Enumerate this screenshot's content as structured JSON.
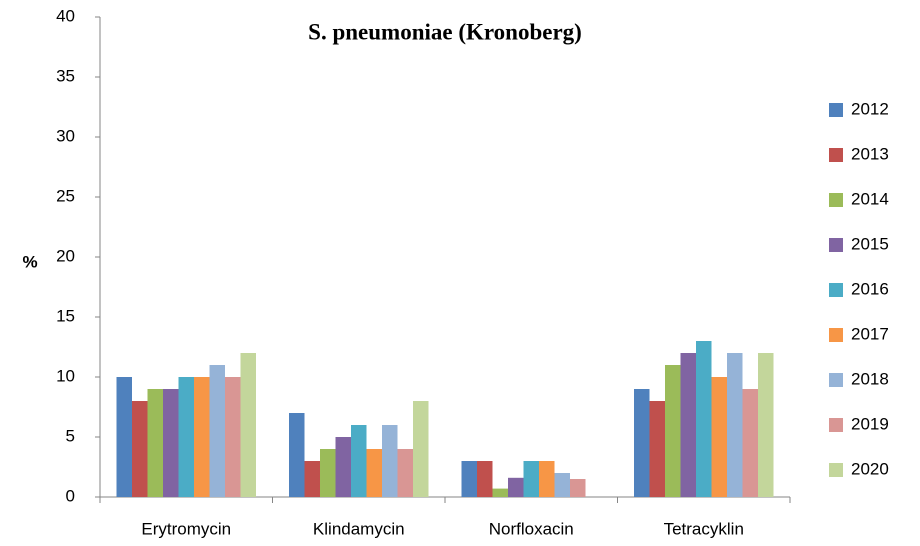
{
  "chart_data": {
    "type": "bar",
    "title": "S. pneumoniae (Kronoberg)",
    "ylabel": "%",
    "categories": [
      "Erytromycin",
      "Klindamycin",
      "Norfloxacin",
      "Tetracyklin"
    ],
    "series": [
      {
        "name": "2012",
        "color": "#4f81bd",
        "values": [
          10,
          7,
          3,
          9
        ]
      },
      {
        "name": "2013",
        "color": "#c0504d",
        "values": [
          8,
          3,
          3,
          8
        ]
      },
      {
        "name": "2014",
        "color": "#9bbb59",
        "values": [
          9,
          4,
          0.7,
          11
        ]
      },
      {
        "name": "2015",
        "color": "#8064a2",
        "values": [
          9,
          5,
          1.6,
          12
        ]
      },
      {
        "name": "2016",
        "color": "#4bacc6",
        "values": [
          10,
          6,
          3,
          13
        ]
      },
      {
        "name": "2017",
        "color": "#f79646",
        "values": [
          10,
          4,
          3,
          10
        ]
      },
      {
        "name": "2018",
        "color": "#95b3d7",
        "values": [
          11,
          6,
          2,
          12
        ]
      },
      {
        "name": "2019",
        "color": "#d99694",
        "values": [
          10,
          4,
          1.5,
          9
        ]
      },
      {
        "name": "2020",
        "color": "#c3d69b",
        "values": [
          12,
          8,
          null,
          12
        ]
      }
    ],
    "ylim": [
      0,
      40
    ],
    "yticks": [
      0,
      5,
      10,
      15,
      20,
      25,
      30,
      35,
      40
    ],
    "legend": "right"
  }
}
